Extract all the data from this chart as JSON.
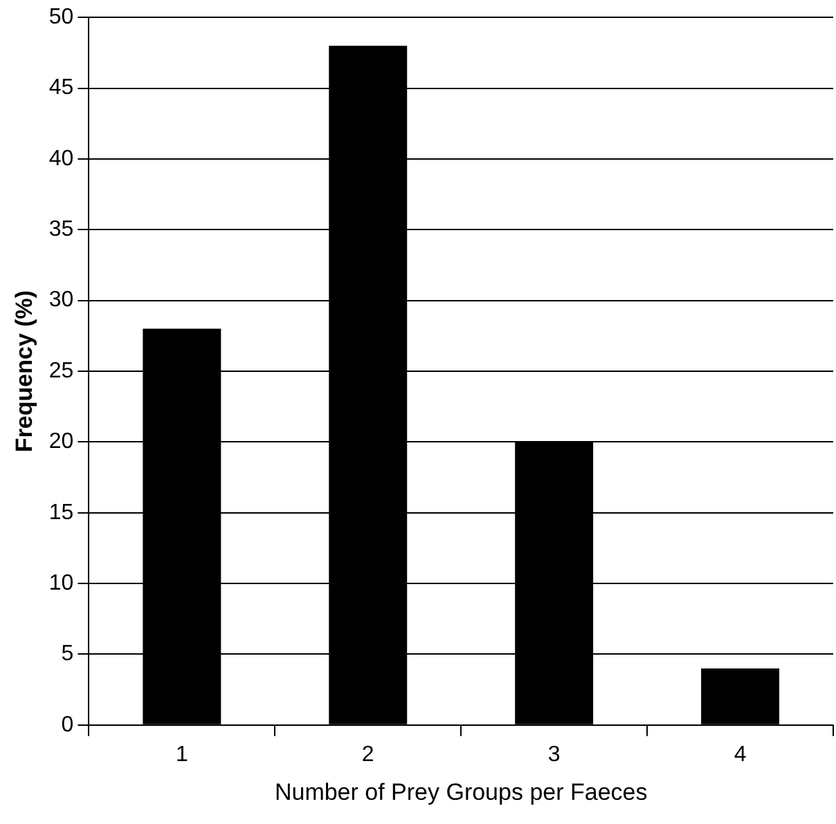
{
  "chart_data": {
    "type": "bar",
    "xlabel": "Number of Prey Groups per Faeces",
    "ylabel": "Frequency (%)",
    "categories": [
      "1",
      "2",
      "3",
      "4"
    ],
    "values": [
      28,
      48,
      20,
      4
    ],
    "color": "#000000",
    "ylim": [
      0,
      50
    ],
    "yticks": [
      0,
      5,
      10,
      15,
      20,
      25,
      30,
      35,
      40,
      45,
      50
    ],
    "grid": "y",
    "legend": false
  }
}
